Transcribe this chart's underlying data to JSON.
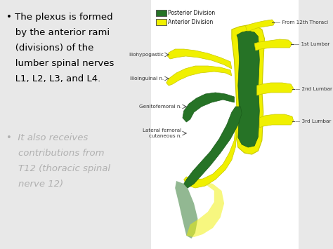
{
  "bg_color": "#ffffff",
  "outer_bg": "#e8e8e8",
  "text1_line1": "•  The plexus is formed",
  "text1_line2": "    by the anterior rami",
  "text1_line3": "    (divisions) of the",
  "text1_line4": "    lumber spinal nerves",
  "text1_line5": "    L1, L2, L3, and L4.",
  "text2_line1": "•  It also receives",
  "text2_line2": "    contributions from",
  "text2_line3": "    T12 (thoracic spinal",
  "text2_line4": "    nerve 12)",
  "legend_posterior": "Posterior Division",
  "legend_anterior": "Anterior Division",
  "color_posterior": "#267326",
  "color_anterior": "#f0f000",
  "color_anterior_edge": "#c8c800",
  "color_posterior_edge": "#1a5c1a",
  "label_from12": "— From 12th Thoraci",
  "label_1st": "— 1st Lumbar",
  "label_iliohyp": "Iliohypogastic ▶",
  "label_ilioing": "Ilioinguinal n▶",
  "label_genito": "Genitofemoral n.",
  "label_lateral": "Lateral femoral\ncutaneous n.",
  "label_2nd": "— 2nd Lumbar",
  "label_3rd": "— 3rd Lumbar",
  "font_color_main": "#000000",
  "font_color_blurred": "#999999"
}
